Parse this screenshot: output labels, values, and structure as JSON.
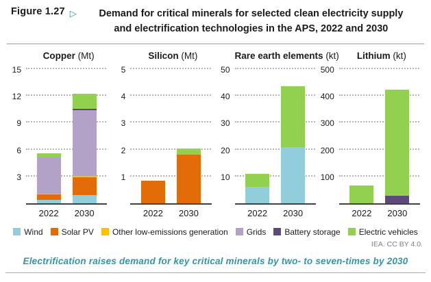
{
  "figure": {
    "label": "Figure 1.27",
    "pointer": "▷",
    "title_line1": "Demand for critical minerals for selected clean electricity supply",
    "title_line2": "and electrification technologies in the APS, 2022 and 2030"
  },
  "legend": [
    {
      "label": "Wind",
      "color": "#92cddc"
    },
    {
      "label": "Solar PV",
      "color": "#e36c09"
    },
    {
      "label": "Other low-emissions generation",
      "color": "#ffc000"
    },
    {
      "label": "Grids",
      "color": "#b2a2c7"
    },
    {
      "label": "Battery storage",
      "color": "#5f497a"
    },
    {
      "label": "Electric vehicles",
      "color": "#92d050"
    }
  ],
  "attribution": "IEA. CC BY 4.0.",
  "takeaway": "Electrification raises demand for key critical minerals by two- to seven-times by 2030",
  "colors": {
    "accent_teal": "#2e96ac",
    "gridline": "#b3b3b3",
    "axis": "#404040"
  },
  "chart_data": [
    {
      "type": "bar",
      "stacked": true,
      "title": "Copper",
      "unit": "(Mt)",
      "categories": [
        "2022",
        "2030"
      ],
      "ylim": [
        0,
        15
      ],
      "yticks": [
        3,
        6,
        9,
        12,
        15
      ],
      "grid": "dotted",
      "series": [
        {
          "name": "Wind",
          "values": [
            0.4,
            0.9
          ]
        },
        {
          "name": "Solar PV",
          "values": [
            0.6,
            2.0
          ]
        },
        {
          "name": "Other low-emissions generation",
          "values": [
            0.1,
            0.15
          ]
        },
        {
          "name": "Grids",
          "values": [
            4.1,
            7.35
          ]
        },
        {
          "name": "Battery storage",
          "values": [
            0,
            0.15
          ]
        },
        {
          "name": "Electric vehicles",
          "values": [
            0.4,
            1.65
          ]
        }
      ]
    },
    {
      "type": "bar",
      "stacked": true,
      "title": "Silicon",
      "unit": "(Mt)",
      "categories": [
        "2022",
        "2030"
      ],
      "ylim": [
        0,
        5
      ],
      "yticks": [
        1,
        2,
        3,
        4,
        5
      ],
      "grid": "dotted",
      "series": [
        {
          "name": "Solar PV",
          "values": [
            0.85,
            1.8
          ]
        },
        {
          "name": "Electric vehicles",
          "values": [
            0,
            0.25
          ]
        }
      ]
    },
    {
      "type": "bar",
      "stacked": true,
      "title": "Rare earth elements",
      "unit": "(kt)",
      "categories": [
        "2022",
        "2030"
      ],
      "ylim": [
        0,
        50
      ],
      "yticks": [
        10,
        20,
        30,
        40,
        50
      ],
      "grid": "dotted",
      "series": [
        {
          "name": "Wind",
          "values": [
            6,
            21
          ]
        },
        {
          "name": "Electric vehicles",
          "values": [
            5,
            22.5
          ]
        }
      ]
    },
    {
      "type": "bar",
      "stacked": true,
      "title": "Lithium",
      "unit": "(kt)",
      "categories": [
        "2022",
        "2030"
      ],
      "ylim": [
        0,
        500
      ],
      "yticks": [
        100,
        200,
        300,
        400,
        500
      ],
      "grid": "dotted",
      "series": [
        {
          "name": "Battery storage",
          "values": [
            0,
            28
          ]
        },
        {
          "name": "Electric vehicles",
          "values": [
            65,
            395
          ]
        }
      ]
    }
  ]
}
